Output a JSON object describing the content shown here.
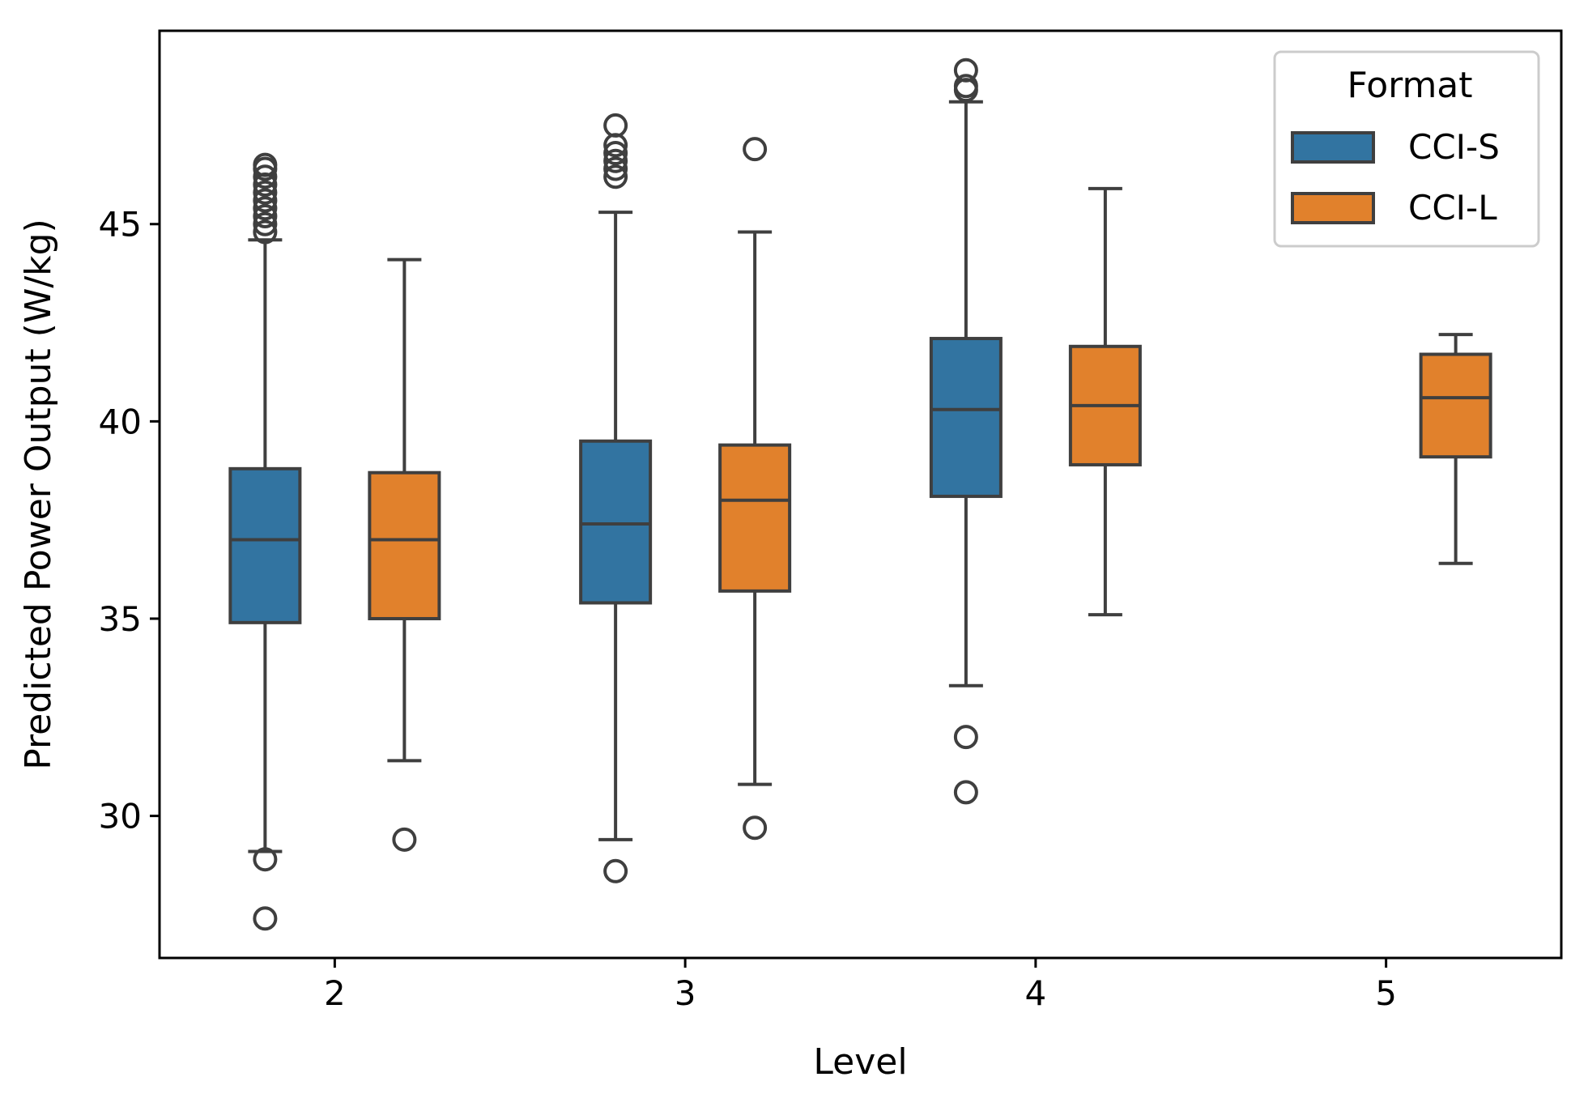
{
  "chart_data": {
    "type": "box",
    "title": "",
    "xlabel": "Level",
    "ylabel": "Predicted Power Output (W/kg)",
    "categories": [
      "2",
      "3",
      "4",
      "5"
    ],
    "ylim": [
      26.4,
      49.9
    ],
    "yticks": [
      30,
      35,
      40,
      45
    ],
    "grid": false,
    "legend": {
      "title": "Format",
      "position": "top-right"
    },
    "series": [
      {
        "name": "CCI-S",
        "color": "#3274a1",
        "boxes": [
          {
            "category": "2",
            "whisker_low": 29.1,
            "q1": 34.9,
            "median": 37.0,
            "q3": 38.8,
            "whisker_high": 44.6,
            "outliers": [
              28.9,
              27.4,
              44.8,
              45.0,
              45.2,
              45.4,
              45.6,
              45.8,
              46.0,
              46.2,
              46.4,
              46.5
            ]
          },
          {
            "category": "3",
            "whisker_low": 29.4,
            "q1": 35.4,
            "median": 37.4,
            "q3": 39.5,
            "whisker_high": 45.3,
            "outliers": [
              28.6,
              46.2,
              46.4,
              46.6,
              46.8,
              47.0,
              47.5
            ]
          },
          {
            "category": "4",
            "whisker_low": 33.3,
            "q1": 38.1,
            "median": 40.3,
            "q3": 42.1,
            "whisker_high": 48.1,
            "outliers": [
              32.0,
              30.6,
              48.4,
              48.5,
              48.9
            ]
          }
        ]
      },
      {
        "name": "CCI-L",
        "color": "#e1812c",
        "boxes": [
          {
            "category": "2",
            "whisker_low": 31.4,
            "q1": 35.0,
            "median": 37.0,
            "q3": 38.7,
            "whisker_high": 44.1,
            "outliers": [
              29.4
            ]
          },
          {
            "category": "3",
            "whisker_low": 30.8,
            "q1": 35.7,
            "median": 38.0,
            "q3": 39.4,
            "whisker_high": 44.8,
            "outliers": [
              29.7,
              46.9
            ]
          },
          {
            "category": "4",
            "whisker_low": 35.1,
            "q1": 38.9,
            "median": 40.4,
            "q3": 41.9,
            "whisker_high": 45.9,
            "outliers": []
          },
          {
            "category": "5",
            "whisker_low": 36.4,
            "q1": 39.1,
            "median": 40.6,
            "q3": 41.7,
            "whisker_high": 42.2,
            "outliers": []
          }
        ]
      }
    ]
  }
}
